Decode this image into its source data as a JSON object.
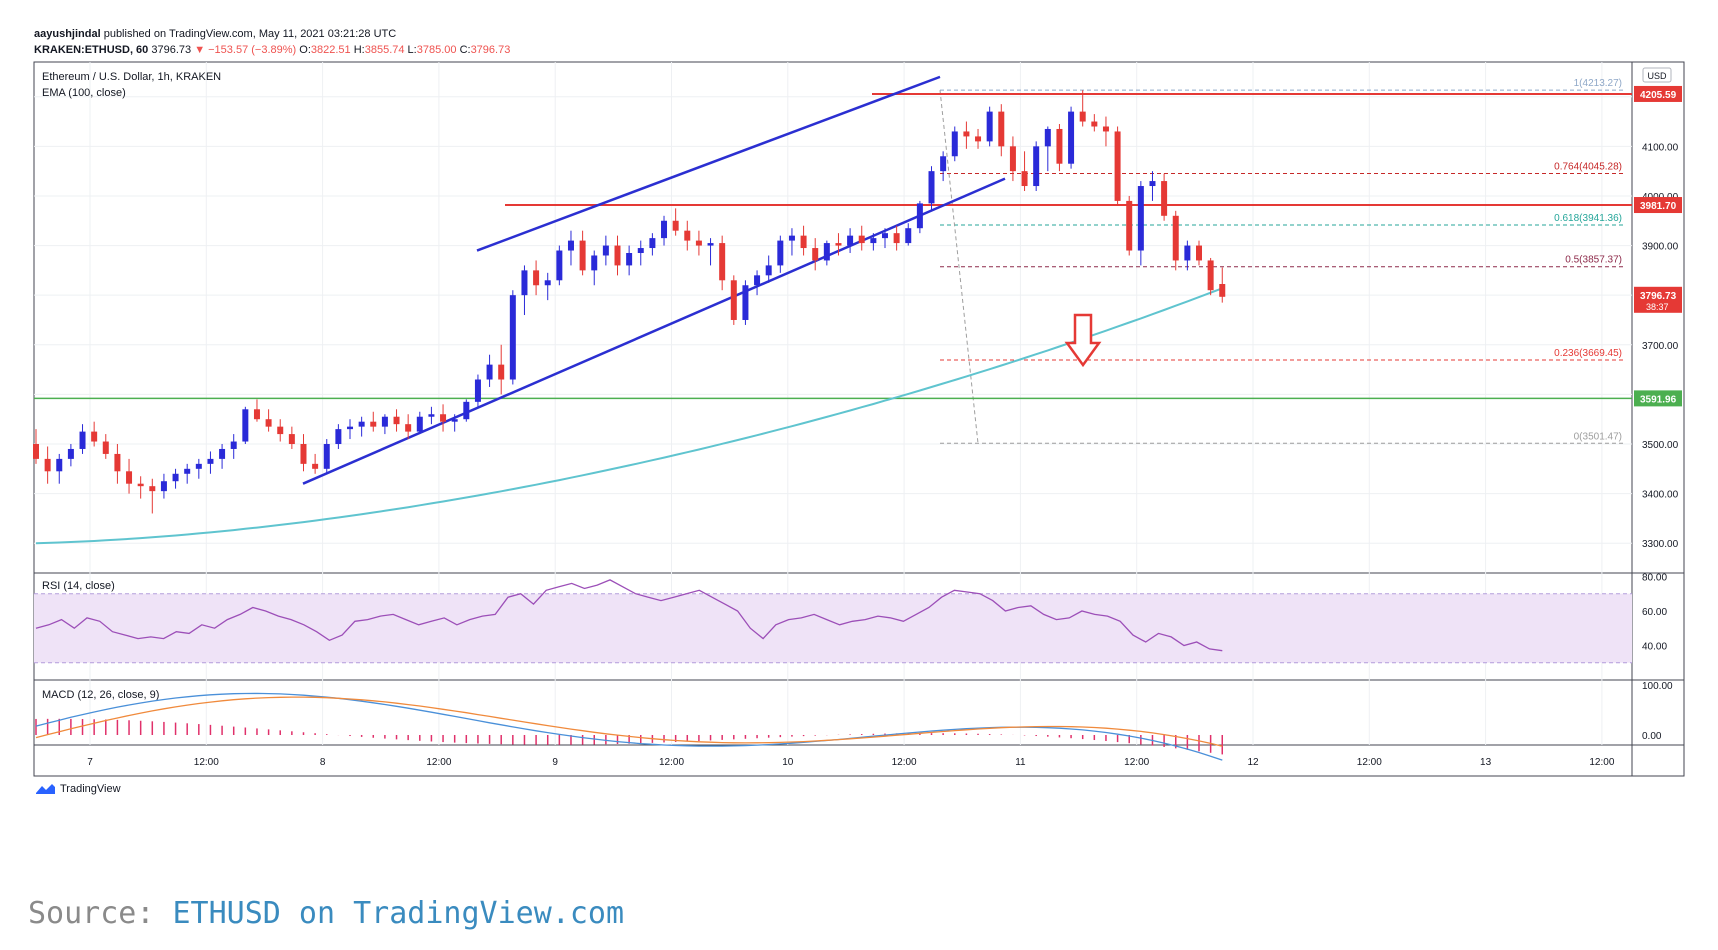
{
  "header": {
    "user": "aayushjindal",
    "published": "published on TradingView.com, May 11, 2021 03:21:28 UTC",
    "symbol_line_prefix": "KRAKEN:ETHUSD, 60",
    "last": "3796.73",
    "change": "▼ −153.57 (−3.89%)",
    "o_label": "O:",
    "o_val": "3822.51",
    "h_label": "H:",
    "h_val": "3855.74",
    "l_label": "L:",
    "l_val": "3785.00",
    "c_label": "C:",
    "c_val": "3796.73"
  },
  "colors": {
    "up": "#2a2ad8",
    "down": "#e53935",
    "ema": "#5fc4cf",
    "channel": "#2b2fd1",
    "resistance": "#e53935",
    "support": "#4caf50",
    "rsi": "#9c4fb8",
    "macd": "#4a90d9",
    "signal": "#f08a3c",
    "hist": "#e0306a"
  },
  "chart_data": {
    "type": "candlestick",
    "title": "Ethereum / U.S. Dollar, 1h, KRAKEN",
    "indicator": "EMA (100, close)",
    "currency": "USD",
    "ylim": [
      3240,
      4270
    ],
    "y_ticks": [
      3300,
      3400,
      3500,
      3700,
      3900,
      4000,
      4100
    ],
    "x_ticks": [
      "7",
      "12:00",
      "8",
      "12:00",
      "9",
      "12:00",
      "10",
      "12:00",
      "11",
      "12:00",
      "12",
      "12:00",
      "13",
      "12:00"
    ],
    "candles": [
      [
        3500,
        3530,
        3460,
        3470
      ],
      [
        3470,
        3495,
        3420,
        3445
      ],
      [
        3445,
        3480,
        3420,
        3470
      ],
      [
        3470,
        3500,
        3455,
        3490
      ],
      [
        3490,
        3540,
        3480,
        3525
      ],
      [
        3525,
        3545,
        3495,
        3505
      ],
      [
        3505,
        3520,
        3470,
        3480
      ],
      [
        3480,
        3500,
        3420,
        3445
      ],
      [
        3445,
        3470,
        3400,
        3420
      ],
      [
        3420,
        3435,
        3390,
        3415
      ],
      [
        3415,
        3430,
        3360,
        3405
      ],
      [
        3405,
        3440,
        3390,
        3425
      ],
      [
        3425,
        3450,
        3410,
        3440
      ],
      [
        3440,
        3460,
        3420,
        3450
      ],
      [
        3450,
        3470,
        3430,
        3460
      ],
      [
        3460,
        3485,
        3440,
        3470
      ],
      [
        3470,
        3500,
        3450,
        3490
      ],
      [
        3490,
        3520,
        3470,
        3505
      ],
      [
        3505,
        3575,
        3500,
        3570
      ],
      [
        3570,
        3590,
        3545,
        3550
      ],
      [
        3550,
        3570,
        3525,
        3535
      ],
      [
        3535,
        3550,
        3505,
        3520
      ],
      [
        3520,
        3535,
        3490,
        3500
      ],
      [
        3500,
        3520,
        3445,
        3460
      ],
      [
        3460,
        3480,
        3440,
        3450
      ],
      [
        3450,
        3510,
        3440,
        3500
      ],
      [
        3500,
        3540,
        3490,
        3530
      ],
      [
        3530,
        3550,
        3510,
        3535
      ],
      [
        3535,
        3555,
        3515,
        3545
      ],
      [
        3545,
        3565,
        3525,
        3535
      ],
      [
        3535,
        3560,
        3520,
        3555
      ],
      [
        3555,
        3570,
        3525,
        3540
      ],
      [
        3540,
        3560,
        3510,
        3525
      ],
      [
        3525,
        3565,
        3520,
        3555
      ],
      [
        3555,
        3575,
        3540,
        3560
      ],
      [
        3560,
        3580,
        3525,
        3545
      ],
      [
        3545,
        3560,
        3525,
        3550
      ],
      [
        3550,
        3590,
        3545,
        3585
      ],
      [
        3585,
        3640,
        3575,
        3630
      ],
      [
        3630,
        3680,
        3615,
        3660
      ],
      [
        3660,
        3700,
        3600,
        3630
      ],
      [
        3630,
        3810,
        3620,
        3800
      ],
      [
        3800,
        3860,
        3760,
        3850
      ],
      [
        3850,
        3870,
        3800,
        3820
      ],
      [
        3820,
        3845,
        3790,
        3830
      ],
      [
        3830,
        3900,
        3820,
        3890
      ],
      [
        3890,
        3930,
        3860,
        3910
      ],
      [
        3910,
        3930,
        3840,
        3850
      ],
      [
        3850,
        3890,
        3820,
        3880
      ],
      [
        3880,
        3920,
        3860,
        3900
      ],
      [
        3900,
        3920,
        3840,
        3860
      ],
      [
        3860,
        3900,
        3840,
        3885
      ],
      [
        3885,
        3910,
        3860,
        3895
      ],
      [
        3895,
        3925,
        3880,
        3915
      ],
      [
        3915,
        3960,
        3900,
        3950
      ],
      [
        3950,
        3975,
        3920,
        3930
      ],
      [
        3930,
        3950,
        3890,
        3910
      ],
      [
        3910,
        3930,
        3880,
        3900
      ],
      [
        3900,
        3915,
        3860,
        3905
      ],
      [
        3905,
        3920,
        3810,
        3830
      ],
      [
        3830,
        3840,
        3740,
        3750
      ],
      [
        3750,
        3830,
        3740,
        3820
      ],
      [
        3820,
        3850,
        3800,
        3840
      ],
      [
        3840,
        3880,
        3825,
        3860
      ],
      [
        3860,
        3920,
        3845,
        3910
      ],
      [
        3910,
        3935,
        3880,
        3920
      ],
      [
        3920,
        3940,
        3880,
        3895
      ],
      [
        3895,
        3915,
        3850,
        3870
      ],
      [
        3870,
        3910,
        3860,
        3905
      ],
      [
        3905,
        3925,
        3880,
        3900
      ],
      [
        3900,
        3935,
        3885,
        3920
      ],
      [
        3920,
        3940,
        3890,
        3905
      ],
      [
        3905,
        3925,
        3890,
        3915
      ],
      [
        3915,
        3935,
        3895,
        3925
      ],
      [
        3925,
        3940,
        3890,
        3905
      ],
      [
        3905,
        3945,
        3900,
        3935
      ],
      [
        3935,
        3990,
        3925,
        3985
      ],
      [
        3985,
        4060,
        3970,
        4050
      ],
      [
        4050,
        4090,
        4030,
        4080
      ],
      [
        4080,
        4140,
        4070,
        4130
      ],
      [
        4130,
        4150,
        4095,
        4120
      ],
      [
        4120,
        4135,
        4095,
        4110
      ],
      [
        4110,
        4180,
        4100,
        4170
      ],
      [
        4170,
        4185,
        4080,
        4100
      ],
      [
        4100,
        4120,
        4030,
        4050
      ],
      [
        4050,
        4090,
        4010,
        4020
      ],
      [
        4020,
        4110,
        4010,
        4100
      ],
      [
        4100,
        4140,
        4050,
        4135
      ],
      [
        4135,
        4145,
        4050,
        4065
      ],
      [
        4065,
        4180,
        4055,
        4170
      ],
      [
        4170,
        4213,
        4140,
        4150
      ],
      [
        4150,
        4165,
        4130,
        4140
      ],
      [
        4140,
        4160,
        4100,
        4130
      ],
      [
        4130,
        4140,
        3980,
        3990
      ],
      [
        3990,
        4000,
        3880,
        3890
      ],
      [
        3890,
        4030,
        3860,
        4020
      ],
      [
        4020,
        4050,
        3990,
        4030
      ],
      [
        4030,
        4045,
        3950,
        3960
      ],
      [
        3960,
        3970,
        3850,
        3870
      ],
      [
        3870,
        3910,
        3850,
        3900
      ],
      [
        3900,
        3910,
        3860,
        3870
      ],
      [
        3870,
        3875,
        3800,
        3810
      ],
      [
        3822.51,
        3855.74,
        3785,
        3796.73
      ]
    ],
    "ema": {
      "start": 3300,
      "end": 3811
    },
    "levels": {
      "resistance_4205": 4205.59,
      "resistance_3981": 3981.7,
      "support_3591": 3591.96,
      "last_price": 3796.73,
      "countdown": "38:37"
    },
    "fib": [
      {
        "ratio": "1",
        "value": "4213.27",
        "label": "1(4213.27)"
      },
      {
        "ratio": "0.764",
        "value": "4045.28",
        "label": "0.764(4045.28)"
      },
      {
        "ratio": "0.618",
        "value": "3941.36",
        "label": "0.618(3941.36)"
      },
      {
        "ratio": "0.5",
        "value": "3857.37",
        "label": "0.5(3857.37)"
      },
      {
        "ratio": "0.236",
        "value": "3669.45",
        "label": "0.236(3669.45)"
      },
      {
        "ratio": "0",
        "value": "3501.47",
        "label": "0(3501.47)"
      }
    ],
    "price_labels": [
      "4205.59",
      "3981.70",
      "3796.73",
      "3591.96"
    ],
    "rsi": {
      "title": "RSI (14, close)",
      "ticks": [
        "80.00",
        "60.00",
        "40.00"
      ],
      "values": [
        50,
        52,
        55,
        50,
        56,
        54,
        48,
        46,
        44,
        45,
        44,
        48,
        47,
        52,
        50,
        55,
        58,
        62,
        60,
        57,
        55,
        52,
        48,
        43,
        46,
        54,
        55,
        57,
        58,
        55,
        52,
        54,
        56,
        52,
        55,
        57,
        58,
        68,
        70,
        64,
        72,
        74,
        76,
        73,
        75,
        78,
        74,
        70,
        68,
        66,
        68,
        70,
        72,
        68,
        64,
        60,
        50,
        44,
        52,
        55,
        56,
        58,
        55,
        52,
        54,
        55,
        57,
        56,
        54,
        58,
        62,
        68,
        72,
        71,
        70,
        66,
        60,
        62,
        63,
        58,
        55,
        56,
        60,
        58,
        57,
        54,
        46,
        42,
        47,
        45,
        40,
        42,
        38,
        37
      ]
    },
    "macd": {
      "title": "MACD (12, 26, close, 9)",
      "ticks": [
        "100.00",
        "0.00"
      ]
    }
  },
  "footer": {
    "brand": "TradingView",
    "source_prefix": "Source: ",
    "source_link": "ETHUSD on TradingView.com"
  }
}
